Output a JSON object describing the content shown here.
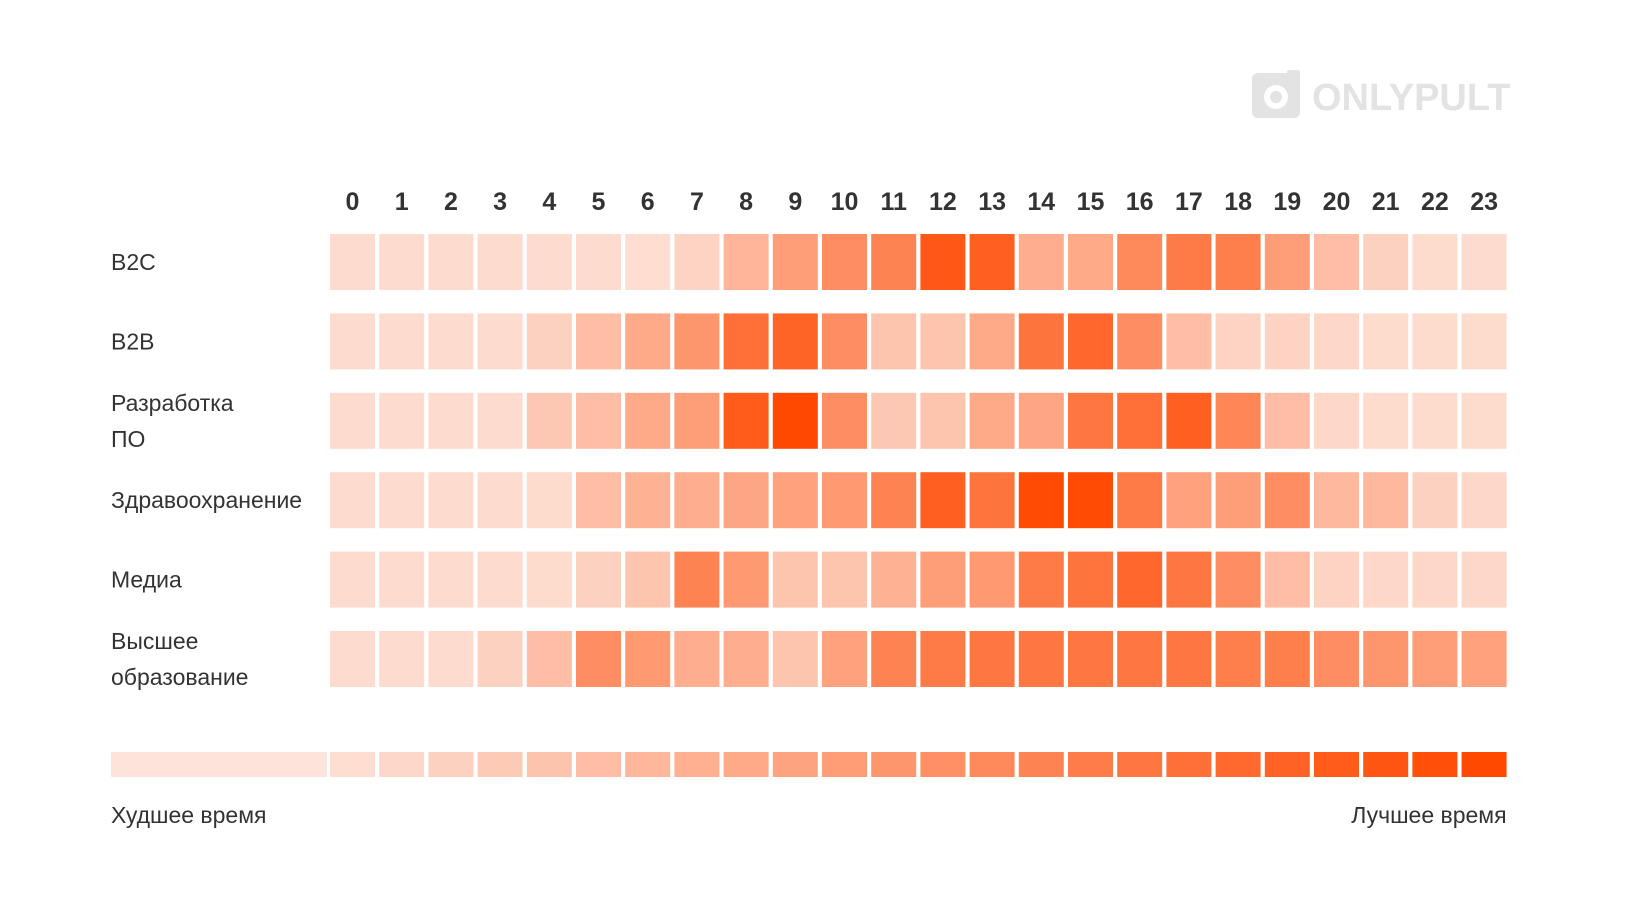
{
  "logo": {
    "text": "ONLYPULT",
    "icon": "camera-icon",
    "color": "#e3e3e3"
  },
  "chart_data": {
    "type": "heatmap",
    "title": "",
    "x": [
      "0",
      "1",
      "2",
      "3",
      "4",
      "5",
      "6",
      "7",
      "8",
      "9",
      "10",
      "11",
      "12",
      "13",
      "14",
      "15",
      "16",
      "17",
      "18",
      "19",
      "20",
      "21",
      "22",
      "23"
    ],
    "rows": [
      {
        "label": [
          "B2C"
        ],
        "values": [
          0.05,
          0.05,
          0.05,
          0.05,
          0.05,
          0.05,
          0.04,
          0.1,
          0.3,
          0.45,
          0.55,
          0.62,
          0.9,
          0.85,
          0.35,
          0.38,
          0.58,
          0.68,
          0.65,
          0.45,
          0.25,
          0.12,
          0.06,
          0.05
        ]
      },
      {
        "label": [
          "B2B"
        ],
        "values": [
          0.05,
          0.05,
          0.05,
          0.05,
          0.12,
          0.25,
          0.38,
          0.5,
          0.75,
          0.82,
          0.55,
          0.2,
          0.2,
          0.38,
          0.72,
          0.8,
          0.55,
          0.25,
          0.1,
          0.1,
          0.08,
          0.06,
          0.06,
          0.06
        ]
      },
      {
        "label": [
          "Разработка",
          "ПО"
        ],
        "values": [
          0.05,
          0.05,
          0.05,
          0.05,
          0.18,
          0.25,
          0.38,
          0.45,
          0.88,
          1.0,
          0.55,
          0.18,
          0.2,
          0.38,
          0.4,
          0.7,
          0.75,
          0.85,
          0.6,
          0.25,
          0.08,
          0.06,
          0.06,
          0.06
        ]
      },
      {
        "label": [
          "Здравоохранение"
        ],
        "values": [
          0.05,
          0.05,
          0.05,
          0.05,
          0.06,
          0.25,
          0.32,
          0.35,
          0.4,
          0.42,
          0.48,
          0.62,
          0.85,
          0.72,
          0.98,
          0.98,
          0.68,
          0.42,
          0.45,
          0.55,
          0.28,
          0.28,
          0.12,
          0.08
        ]
      },
      {
        "label": [
          "Медиа"
        ],
        "values": [
          0.05,
          0.05,
          0.05,
          0.05,
          0.06,
          0.12,
          0.2,
          0.62,
          0.48,
          0.2,
          0.2,
          0.32,
          0.45,
          0.48,
          0.68,
          0.72,
          0.8,
          0.7,
          0.55,
          0.25,
          0.1,
          0.08,
          0.08,
          0.08
        ]
      },
      {
        "label": [
          "Высшее",
          "образование"
        ],
        "values": [
          0.05,
          0.05,
          0.05,
          0.12,
          0.25,
          0.55,
          0.48,
          0.35,
          0.35,
          0.2,
          0.42,
          0.62,
          0.68,
          0.7,
          0.7,
          0.7,
          0.7,
          0.7,
          0.65,
          0.65,
          0.55,
          0.5,
          0.45,
          0.42
        ]
      }
    ],
    "color_scale": {
      "min_color": "#fde4da",
      "max_color": "#ff4800"
    },
    "legend": {
      "min_label": "Худшее время",
      "max_label": "Лучшее время",
      "steps": 24
    }
  }
}
